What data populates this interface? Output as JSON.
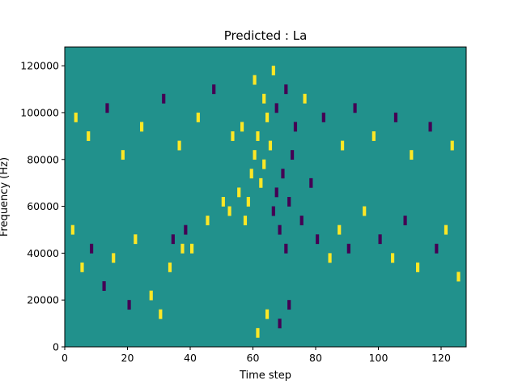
{
  "chart_data": {
    "type": "heatmap",
    "title": "Predicted : La",
    "xlabel": "Time step",
    "ylabel": "Frequency (Hz)",
    "xlim": [
      0,
      128
    ],
    "ylim": [
      0,
      128000
    ],
    "xticks": [
      0,
      20,
      40,
      60,
      80,
      100,
      120
    ],
    "yticks": [
      0,
      20000,
      40000,
      60000,
      80000,
      100000,
      120000
    ],
    "colormap": {
      "low": "#440154",
      "mid": "#21918c",
      "high": "#fde725"
    },
    "background_value": 0,
    "cell_value_legend": {
      "low": -1,
      "mid": 0,
      "high": 1
    },
    "grid": false,
    "nonzero_cells": [
      {
        "col": 27,
        "row": 5,
        "value": 1
      },
      {
        "col": 30,
        "row": 3,
        "value": 1
      },
      {
        "col": 33,
        "row": 8,
        "value": 1
      },
      {
        "col": 34,
        "row": 11,
        "value": -1
      },
      {
        "col": 37,
        "row": 10,
        "value": 1
      },
      {
        "col": 38,
        "row": 12,
        "value": -1
      },
      {
        "col": 40,
        "row": 10,
        "value": 1
      },
      {
        "col": 45,
        "row": 13,
        "value": 1
      },
      {
        "col": 50,
        "row": 15,
        "value": 1
      },
      {
        "col": 52,
        "row": 14,
        "value": 1
      },
      {
        "col": 55,
        "row": 16,
        "value": 1
      },
      {
        "col": 57,
        "row": 13,
        "value": 1
      },
      {
        "col": 58,
        "row": 15,
        "value": 1
      },
      {
        "col": 59,
        "row": 18,
        "value": 1
      },
      {
        "col": 60,
        "row": 20,
        "value": 1
      },
      {
        "col": 61,
        "row": 22,
        "value": 1
      },
      {
        "col": 62,
        "row": 17,
        "value": 1
      },
      {
        "col": 63,
        "row": 19,
        "value": 1
      },
      {
        "col": 64,
        "row": 24,
        "value": 1
      },
      {
        "col": 65,
        "row": 21,
        "value": 1
      },
      {
        "col": 66,
        "row": 14,
        "value": -1
      },
      {
        "col": 67,
        "row": 16,
        "value": -1
      },
      {
        "col": 68,
        "row": 12,
        "value": -1
      },
      {
        "col": 69,
        "row": 18,
        "value": -1
      },
      {
        "col": 70,
        "row": 10,
        "value": -1
      },
      {
        "col": 71,
        "row": 15,
        "value": -1
      },
      {
        "col": 72,
        "row": 20,
        "value": -1
      },
      {
        "col": 75,
        "row": 13,
        "value": -1
      },
      {
        "col": 78,
        "row": 17,
        "value": -1
      },
      {
        "col": 80,
        "row": 11,
        "value": -1
      },
      {
        "col": 84,
        "row": 9,
        "value": 1
      },
      {
        "col": 87,
        "row": 12,
        "value": 1
      },
      {
        "col": 90,
        "row": 10,
        "value": -1
      },
      {
        "col": 95,
        "row": 14,
        "value": 1
      },
      {
        "col": 100,
        "row": 11,
        "value": -1
      },
      {
        "col": 104,
        "row": 9,
        "value": 1
      },
      {
        "col": 108,
        "row": 13,
        "value": -1
      },
      {
        "col": 112,
        "row": 8,
        "value": 1
      },
      {
        "col": 118,
        "row": 10,
        "value": -1
      },
      {
        "col": 121,
        "row": 12,
        "value": 1
      },
      {
        "col": 125,
        "row": 7,
        "value": 1
      },
      {
        "col": 12,
        "row": 6,
        "value": -1
      },
      {
        "col": 15,
        "row": 9,
        "value": 1
      },
      {
        "col": 20,
        "row": 4,
        "value": -1
      },
      {
        "col": 22,
        "row": 11,
        "value": 1
      },
      {
        "col": 5,
        "row": 8,
        "value": 1
      },
      {
        "col": 8,
        "row": 10,
        "value": -1
      },
      {
        "col": 2,
        "row": 12,
        "value": 1
      },
      {
        "col": 61,
        "row": 1,
        "value": 1
      },
      {
        "col": 64,
        "row": 3,
        "value": 1
      },
      {
        "col": 68,
        "row": 2,
        "value": -1
      },
      {
        "col": 71,
        "row": 4,
        "value": -1
      },
      {
        "col": 63,
        "row": 26,
        "value": 1
      },
      {
        "col": 67,
        "row": 25,
        "value": -1
      },
      {
        "col": 60,
        "row": 28,
        "value": 1
      },
      {
        "col": 70,
        "row": 27,
        "value": -1
      },
      {
        "col": 66,
        "row": 29,
        "value": 1
      },
      {
        "col": 73,
        "row": 23,
        "value": -1
      },
      {
        "col": 76,
        "row": 26,
        "value": 1
      },
      {
        "col": 56,
        "row": 23,
        "value": 1
      },
      {
        "col": 82,
        "row": 24,
        "value": -1
      },
      {
        "col": 88,
        "row": 21,
        "value": 1
      },
      {
        "col": 92,
        "row": 25,
        "value": -1
      },
      {
        "col": 98,
        "row": 22,
        "value": 1
      },
      {
        "col": 105,
        "row": 24,
        "value": -1
      },
      {
        "col": 110,
        "row": 20,
        "value": 1
      },
      {
        "col": 116,
        "row": 23,
        "value": -1
      },
      {
        "col": 123,
        "row": 21,
        "value": 1
      },
      {
        "col": 3,
        "row": 24,
        "value": 1
      },
      {
        "col": 7,
        "row": 22,
        "value": 1
      },
      {
        "col": 13,
        "row": 25,
        "value": -1
      },
      {
        "col": 18,
        "row": 20,
        "value": 1
      },
      {
        "col": 24,
        "row": 23,
        "value": 1
      },
      {
        "col": 31,
        "row": 26,
        "value": -1
      },
      {
        "col": 36,
        "row": 21,
        "value": 1
      },
      {
        "col": 42,
        "row": 24,
        "value": 1
      },
      {
        "col": 47,
        "row": 27,
        "value": -1
      },
      {
        "col": 53,
        "row": 22,
        "value": 1
      }
    ]
  }
}
